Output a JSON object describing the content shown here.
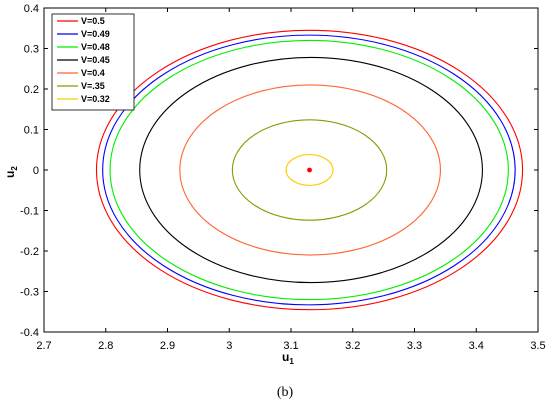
{
  "chart_data": {
    "type": "line",
    "subtype": "closed-contours",
    "xlabel": {
      "base": "u",
      "sub": "1"
    },
    "ylabel": {
      "base": "u",
      "sub": "2"
    },
    "xlim": [
      2.7,
      3.5
    ],
    "ylim": [
      -0.4,
      0.4
    ],
    "xticks": [
      "2.7",
      "2.8",
      "2.9",
      "3",
      "3.1",
      "3.2",
      "3.3",
      "3.4",
      "3.5"
    ],
    "yticks": [
      "0.4",
      "0.3",
      "0.2",
      "0.1",
      "0",
      "-0.1",
      "-0.2",
      "-0.3",
      "-0.4"
    ],
    "grid": false,
    "legend_position": "top-left",
    "center_point": {
      "x": 3.13,
      "y": 0,
      "color": "#ff0000"
    },
    "series": [
      {
        "name": "V=0.5",
        "color": "#ff0000",
        "cx": 3.13,
        "cy": 0,
        "x_min": 2.785,
        "x_max": 3.475,
        "y_max": 0.345
      },
      {
        "name": "V=0.49",
        "color": "#0000ff",
        "cx": 3.13,
        "cy": 0,
        "x_min": 2.795,
        "x_max": 3.463,
        "y_max": 0.333
      },
      {
        "name": "V=0.48",
        "color": "#00ee00",
        "cx": 3.13,
        "cy": 0,
        "x_min": 2.807,
        "x_max": 3.452,
        "y_max": 0.32
      },
      {
        "name": "V=0.45",
        "color": "#000000",
        "cx": 3.13,
        "cy": 0,
        "x_min": 2.855,
        "x_max": 3.41,
        "y_max": 0.278
      },
      {
        "name": "V=0.4",
        "color": "#ff6633",
        "cx": 3.13,
        "cy": 0,
        "x_min": 2.92,
        "x_max": 3.342,
        "y_max": 0.21
      },
      {
        "name": "V=.35",
        "color": "#8a9a00",
        "cx": 3.13,
        "cy": 0,
        "x_min": 3.005,
        "x_max": 3.255,
        "y_max": 0.124
      },
      {
        "name": "V=0.32",
        "color": "#ffcc00",
        "cx": 3.13,
        "cy": 0,
        "x_min": 3.092,
        "x_max": 3.168,
        "y_max": 0.038
      }
    ]
  },
  "caption": "(b)"
}
